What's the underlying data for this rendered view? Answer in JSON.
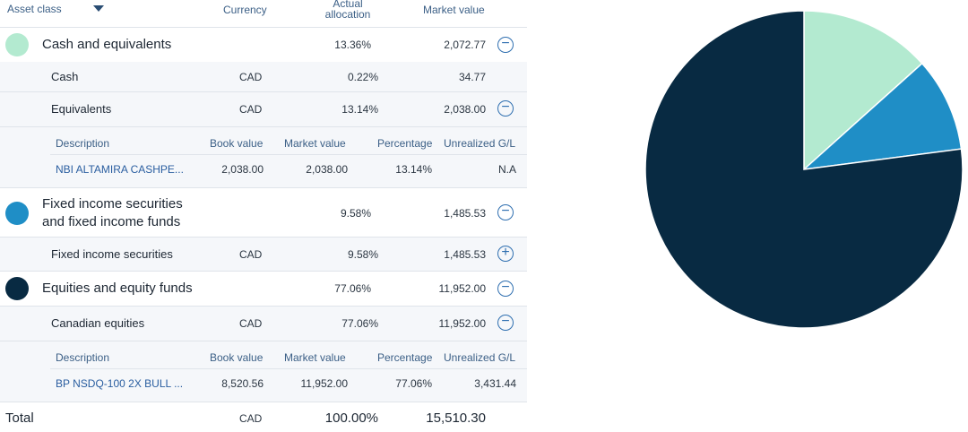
{
  "header": {
    "asset_class": "Asset class",
    "currency": "Currency",
    "actual_allocation_1": "Actual",
    "actual_allocation_2": "allocation",
    "market_value": "Market value"
  },
  "groups": [
    {
      "title_line1": "Cash and equivalents",
      "title_line2": "",
      "allocation": "13.36%",
      "market_value": "2,072.77",
      "color": "#b3ead0",
      "toggle": "−"
    },
    {
      "title_line1": "Fixed income securities",
      "title_line2": "and fixed income funds",
      "allocation": "9.58%",
      "market_value": "1,485.53",
      "color": "#1f8ec6",
      "toggle": "−"
    },
    {
      "title_line1": "Equities and equity funds",
      "title_line2": "",
      "allocation": "77.06%",
      "market_value": "11,952.00",
      "color": "#082a42",
      "toggle": "−"
    }
  ],
  "subrows": [
    {
      "name": "Cash",
      "currency": "CAD",
      "allocation": "0.22%",
      "market_value": "34.77",
      "toggle": ""
    },
    {
      "name": "Equivalents",
      "currency": "CAD",
      "allocation": "13.14%",
      "market_value": "2,038.00",
      "toggle": "−"
    },
    {
      "name": "Fixed income securities",
      "currency": "CAD",
      "allocation": "9.58%",
      "market_value": "1,485.53",
      "toggle": "+"
    },
    {
      "name": "Canadian equities",
      "currency": "CAD",
      "allocation": "77.06%",
      "market_value": "11,952.00",
      "toggle": "−"
    }
  ],
  "detail_headers": {
    "description": "Description",
    "book_value": "Book value",
    "market_value": "Market value",
    "percentage": "Percentage",
    "unrealized": "Unrealized G/L"
  },
  "details": [
    {
      "description": "NBI ALTAMIRA CASHPE...",
      "book_value": "2,038.00",
      "market_value": "2,038.00",
      "percentage": "13.14%",
      "unrealized": "N.A"
    },
    {
      "description": "BP NSDQ-100 2X BULL ...",
      "book_value": "8,520.56",
      "market_value": "11,952.00",
      "percentage": "77.06%",
      "unrealized": "3,431.44"
    }
  ],
  "total": {
    "label": "Total",
    "currency": "CAD",
    "allocation": "100.00%",
    "market_value": "15,510.30"
  },
  "chart_data": {
    "type": "pie",
    "categories": [
      "Cash and equivalents",
      "Fixed income securities and fixed income funds",
      "Equities and equity funds"
    ],
    "values": [
      13.36,
      9.58,
      77.06
    ],
    "colors": [
      "#b3ead0",
      "#1f8ec6",
      "#082a42"
    ],
    "title": ""
  }
}
